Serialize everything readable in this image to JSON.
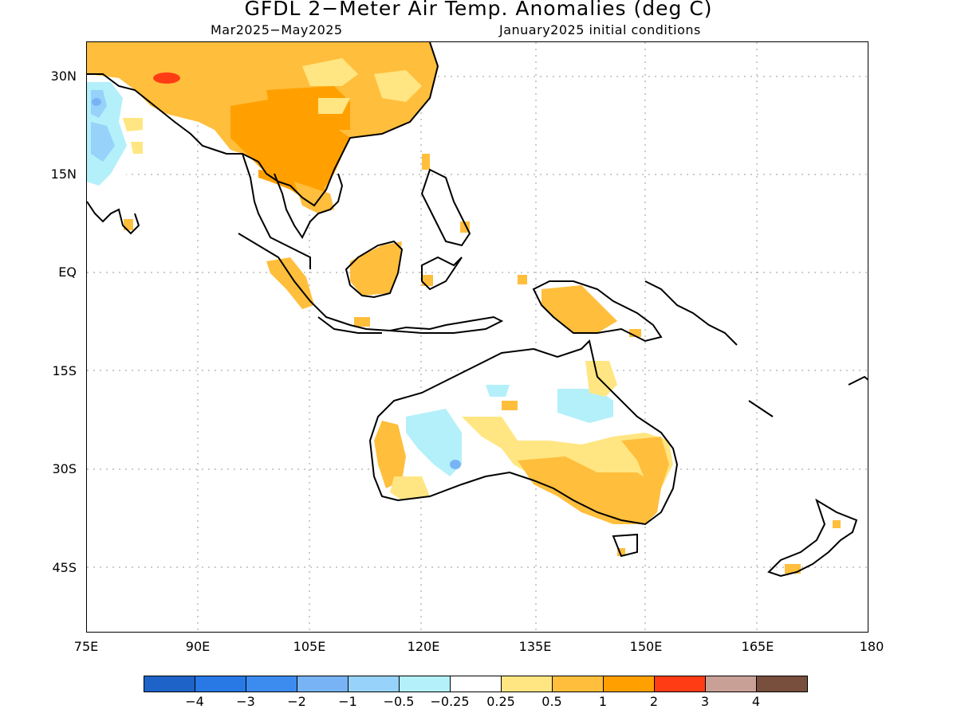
{
  "title": "GFDL 2−Meter Air Temp. Anomalies (deg C)",
  "period": "Mar2025−May2025",
  "init": "January2025 initial conditions",
  "y_axis": [
    "30N",
    "15N",
    "EQ",
    "15S",
    "30S",
    "45S"
  ],
  "x_axis": [
    "75E",
    "90E",
    "105E",
    "120E",
    "135E",
    "150E",
    "165E",
    "180"
  ],
  "colorbar": {
    "labels": [
      "−4",
      "−3",
      "−2",
      "−1",
      "−0.5",
      "−0.25",
      "0.25",
      "0.5",
      "1",
      "2",
      "3",
      "4"
    ],
    "colors": [
      "#1e64c8",
      "#2878e6",
      "#3c8cf0",
      "#78b4f5",
      "#96d2fa",
      "#b4f0fa",
      "#ffffff",
      "#ffe682",
      "#ffbe3c",
      "#ffa000",
      "#ff3c14",
      "#c8a096",
      "#784e3c"
    ]
  }
}
